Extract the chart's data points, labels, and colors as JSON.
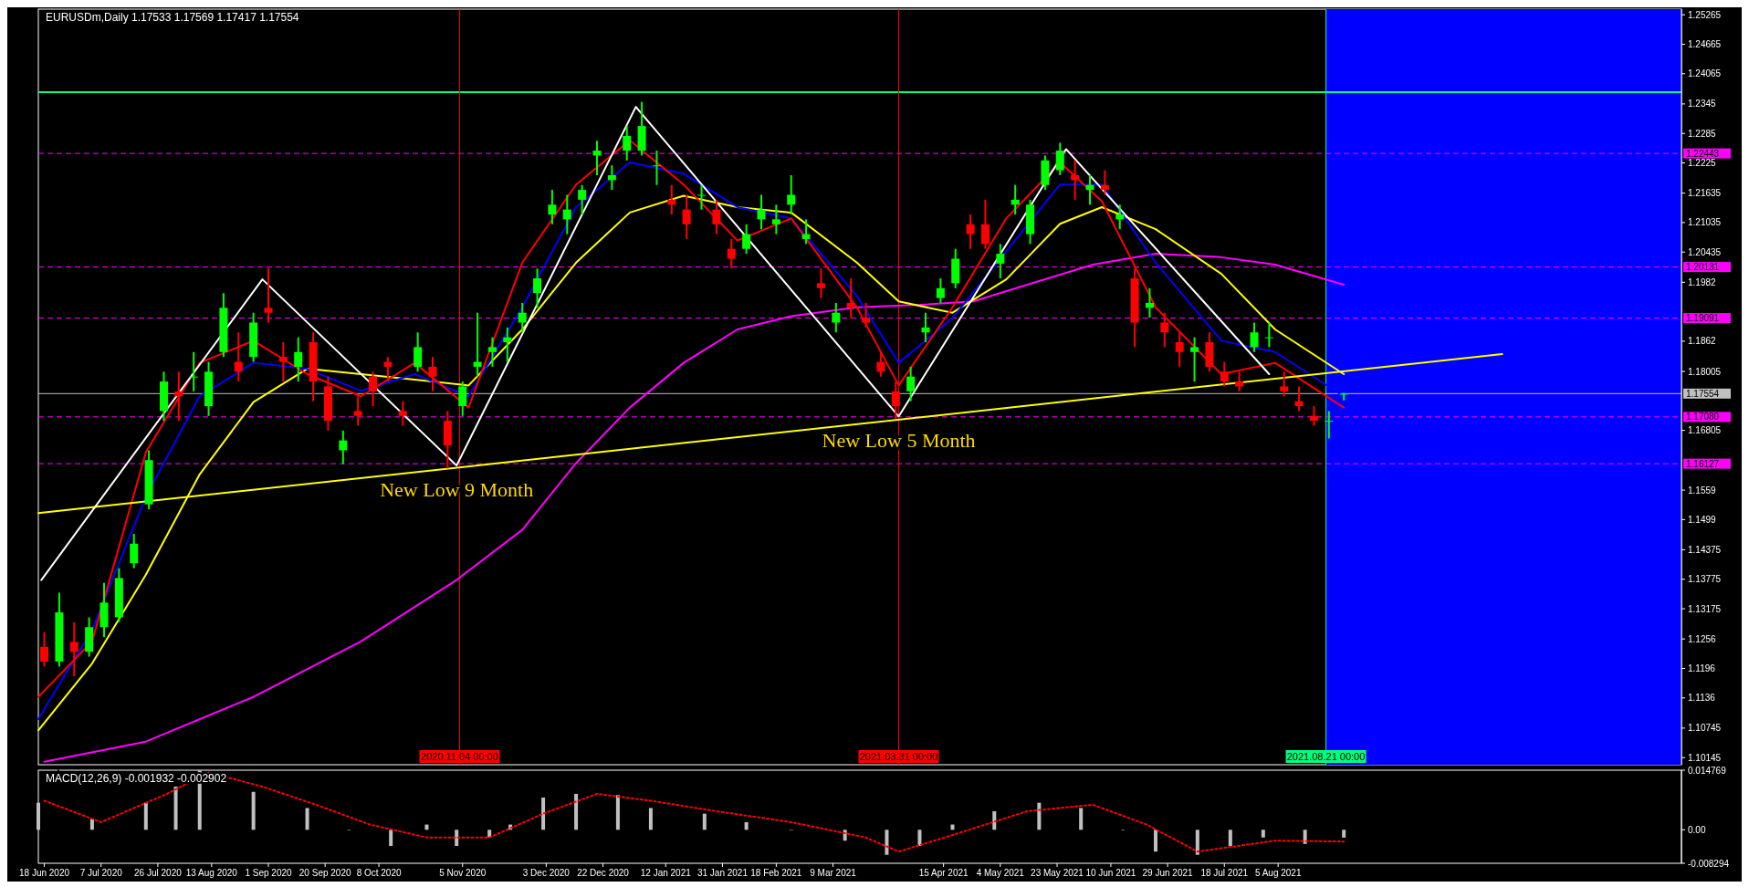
{
  "chart_data": [
    {
      "type": "candlestick",
      "title": "EURUSDm,Daily  1.17533 1.17569 1.17417 1.17554",
      "x": [
        "2020-06-18",
        "2020-06-23",
        "2020-06-28",
        "2020-07-03",
        "2020-07-08",
        "2020-07-13",
        "2020-07-18",
        "2020-07-23",
        "2020-07-28",
        "2020-08-02",
        "2020-08-07",
        "2020-08-12",
        "2020-08-17",
        "2020-08-22",
        "2020-08-27",
        "2020-09-01",
        "2020-09-06",
        "2020-09-11",
        "2020-09-16",
        "2020-09-21",
        "2020-09-26",
        "2020-10-01",
        "2020-10-06",
        "2020-10-11",
        "2020-10-16",
        "2020-10-21",
        "2020-10-26",
        "2020-10-31",
        "2020-11-05",
        "2020-11-10",
        "2020-11-15",
        "2020-11-20",
        "2020-11-25",
        "2020-11-30",
        "2020-12-05",
        "2020-12-10",
        "2020-12-15",
        "2020-12-20",
        "2020-12-25",
        "2020-12-30",
        "2021-01-04",
        "2021-01-09",
        "2021-01-14",
        "2021-01-19",
        "2021-01-24",
        "2021-01-29",
        "2021-02-03",
        "2021-02-08",
        "2021-02-13",
        "2021-02-18",
        "2021-02-23",
        "2021-02-28",
        "2021-03-05",
        "2021-03-10",
        "2021-03-15",
        "2021-03-20",
        "2021-03-25",
        "2021-03-30",
        "2021-04-04",
        "2021-04-09",
        "2021-04-14",
        "2021-04-19",
        "2021-04-24",
        "2021-04-29",
        "2021-05-04",
        "2021-05-09",
        "2021-05-14",
        "2021-05-19",
        "2021-05-24",
        "2021-05-29",
        "2021-06-03",
        "2021-06-08",
        "2021-06-13",
        "2021-06-18",
        "2021-06-23",
        "2021-06-28",
        "2021-07-03",
        "2021-07-08",
        "2021-07-13",
        "2021-07-18",
        "2021-07-23",
        "2021-07-28",
        "2021-08-02",
        "2021-08-07",
        "2021-08-12",
        "2021-08-17",
        "2021-08-22",
        "2021-08-27"
      ],
      "ohlc": [
        [
          1.124,
          1.127,
          1.12,
          1.121
        ],
        [
          1.121,
          1.135,
          1.12,
          1.131
        ],
        [
          1.125,
          1.129,
          1.118,
          1.123
        ],
        [
          1.123,
          1.13,
          1.122,
          1.128
        ],
        [
          1.128,
          1.137,
          1.126,
          1.133
        ],
        [
          1.13,
          1.14,
          1.129,
          1.138
        ],
        [
          1.141,
          1.147,
          1.14,
          1.145
        ],
        [
          1.153,
          1.164,
          1.152,
          1.162
        ],
        [
          1.172,
          1.18,
          1.17,
          1.178
        ],
        [
          1.176,
          1.18,
          1.17,
          1.175
        ],
        [
          1.179,
          1.184,
          1.176,
          1.179
        ],
        [
          1.173,
          1.182,
          1.171,
          1.18
        ],
        [
          1.184,
          1.196,
          1.183,
          1.193
        ],
        [
          1.182,
          1.188,
          1.178,
          1.18
        ],
        [
          1.183,
          1.192,
          1.182,
          1.19
        ],
        [
          1.193,
          1.2011,
          1.19,
          1.192
        ],
        [
          1.183,
          1.186,
          1.178,
          1.182
        ],
        [
          1.181,
          1.187,
          1.178,
          1.184
        ],
        [
          1.186,
          1.188,
          1.174,
          1.178
        ],
        [
          1.177,
          1.179,
          1.168,
          1.17
        ],
        [
          1.164,
          1.168,
          1.1612,
          1.166
        ],
        [
          1.172,
          1.175,
          1.169,
          1.171
        ],
        [
          1.179,
          1.18,
          1.173,
          1.176
        ],
        [
          1.182,
          1.183,
          1.178,
          1.181
        ],
        [
          1.172,
          1.174,
          1.169,
          1.171
        ],
        [
          1.181,
          1.188,
          1.18,
          1.185
        ],
        [
          1.181,
          1.183,
          1.176,
          1.179
        ],
        [
          1.17,
          1.172,
          1.1603,
          1.165
        ],
        [
          1.173,
          1.178,
          1.171,
          1.177
        ],
        [
          1.181,
          1.192,
          1.179,
          1.182
        ],
        [
          1.184,
          1.187,
          1.181,
          1.185
        ],
        [
          1.186,
          1.189,
          1.182,
          1.187
        ],
        [
          1.19,
          1.194,
          1.188,
          1.192
        ],
        [
          1.196,
          1.201,
          1.193,
          1.199
        ],
        [
          1.212,
          1.217,
          1.21,
          1.214
        ],
        [
          1.211,
          1.216,
          1.208,
          1.213
        ],
        [
          1.215,
          1.218,
          1.212,
          1.217
        ],
        [
          1.224,
          1.227,
          1.22,
          1.225
        ],
        [
          1.219,
          1.222,
          1.217,
          1.22
        ],
        [
          1.225,
          1.23,
          1.223,
          1.228
        ],
        [
          1.225,
          1.2349,
          1.224,
          1.23
        ],
        [
          1.222,
          1.225,
          1.218,
          1.222
        ],
        [
          1.215,
          1.218,
          1.212,
          1.214
        ],
        [
          1.213,
          1.216,
          1.207,
          1.21
        ],
        [
          1.216,
          1.218,
          1.213,
          1.216
        ],
        [
          1.213,
          1.215,
          1.208,
          1.21
        ],
        [
          1.205,
          1.207,
          1.201,
          1.203
        ],
        [
          1.205,
          1.21,
          1.204,
          1.208
        ],
        [
          1.211,
          1.216,
          1.209,
          1.213
        ],
        [
          1.21,
          1.214,
          1.208,
          1.211
        ],
        [
          1.214,
          1.22,
          1.212,
          1.216
        ],
        [
          1.207,
          1.211,
          1.206,
          1.208
        ],
        [
          1.198,
          1.201,
          1.195,
          1.197
        ],
        [
          1.19,
          1.194,
          1.188,
          1.192
        ],
        [
          1.194,
          1.199,
          1.191,
          1.193
        ],
        [
          1.191,
          1.194,
          1.189,
          1.19
        ],
        [
          1.182,
          1.184,
          1.179,
          1.18
        ],
        [
          1.176,
          1.178,
          1.1704,
          1.173
        ],
        [
          1.176,
          1.181,
          1.174,
          1.179
        ],
        [
          1.188,
          1.192,
          1.186,
          1.189
        ],
        [
          1.195,
          1.199,
          1.194,
          1.197
        ],
        [
          1.198,
          1.205,
          1.197,
          1.203
        ],
        [
          1.21,
          1.212,
          1.205,
          1.208
        ],
        [
          1.21,
          1.215,
          1.205,
          1.206
        ],
        [
          1.202,
          1.206,
          1.199,
          1.204
        ],
        [
          1.214,
          1.218,
          1.212,
          1.215
        ],
        [
          1.208,
          1.215,
          1.206,
          1.214
        ],
        [
          1.218,
          1.224,
          1.217,
          1.223
        ],
        [
          1.221,
          1.2266,
          1.22,
          1.225
        ],
        [
          1.22,
          1.223,
          1.215,
          1.219
        ],
        [
          1.217,
          1.22,
          1.214,
          1.218
        ],
        [
          1.218,
          1.221,
          1.216,
          1.217
        ],
        [
          1.211,
          1.214,
          1.209,
          1.212
        ],
        [
          1.199,
          1.201,
          1.185,
          1.19
        ],
        [
          1.193,
          1.197,
          1.191,
          1.194
        ],
        [
          1.19,
          1.192,
          1.185,
          1.188
        ],
        [
          1.186,
          1.188,
          1.181,
          1.184
        ],
        [
          1.184,
          1.187,
          1.178,
          1.185
        ],
        [
          1.186,
          1.188,
          1.18,
          1.181
        ],
        [
          1.18,
          1.182,
          1.177,
          1.178
        ],
        [
          1.178,
          1.18,
          1.176,
          1.177
        ],
        [
          1.185,
          1.19,
          1.184,
          1.188
        ],
        [
          1.187,
          1.19,
          1.185,
          1.187
        ],
        [
          1.177,
          1.18,
          1.175,
          1.176
        ],
        [
          1.174,
          1.177,
          1.172,
          1.173
        ],
        [
          1.171,
          1.173,
          1.169,
          1.17
        ],
        [
          1.17,
          1.172,
          1.1664,
          1.17
        ],
        [
          1.17533,
          1.17569,
          1.17417,
          1.17554
        ]
      ],
      "series": [
        {
          "type": "line",
          "color": "#ff00ff",
          "x": [
            "2020-06-18",
            "2020-07-22",
            "2020-08-27",
            "2020-10-02",
            "2020-11-03",
            "2020-11-25",
            "2020-12-13",
            "2020-12-31",
            "2021-01-18",
            "2021-02-05",
            "2021-02-23",
            "2021-03-17",
            "2021-04-07",
            "2021-04-25",
            "2021-05-13",
            "2021-06-04",
            "2021-06-25",
            "2021-07-17",
            "2021-08-04",
            "2021-08-27"
          ],
          "values": [
            1.1006,
            1.1047,
            1.1138,
            1.1251,
            1.1376,
            1.1478,
            1.1614,
            1.1727,
            1.1818,
            1.1886,
            1.1913,
            1.1931,
            1.1936,
            1.1943,
            1.1977,
            1.2018,
            1.204,
            1.2033,
            1.2018,
            1.1977
          ]
        },
        {
          "type": "line",
          "color": "#ffff00",
          "x": [
            "2020-06-16",
            "2020-07-04",
            "2020-07-22",
            "2020-08-09",
            "2020-08-27",
            "2020-09-14",
            "2020-10-02",
            "2020-10-20",
            "2020-11-07",
            "2020-11-25",
            "2020-12-13",
            "2020-12-31",
            "2021-01-18",
            "2021-02-05",
            "2021-02-23",
            "2021-03-17",
            "2021-03-31",
            "2021-04-18",
            "2021-05-06",
            "2021-05-24",
            "2021-06-07",
            "2021-06-25",
            "2021-07-17",
            "2021-08-04",
            "2021-08-27"
          ],
          "values": [
            1.107,
            1.1206,
            1.1387,
            1.1591,
            1.1738,
            1.1806,
            1.1795,
            1.1784,
            1.1772,
            1.1886,
            1.2022,
            1.2124,
            1.2158,
            1.2135,
            1.2124,
            1.2022,
            1.1943,
            1.192,
            1.1988,
            1.2101,
            1.2135,
            1.209,
            1.1999,
            1.1886,
            1.1795
          ]
        },
        {
          "type": "line",
          "color": "#0000ff",
          "x": [
            "2020-06-16",
            "2020-07-04",
            "2020-07-22",
            "2020-08-09",
            "2020-08-27",
            "2020-09-14",
            "2020-10-02",
            "2020-10-20",
            "2020-11-07",
            "2020-11-25",
            "2020-12-13",
            "2020-12-31",
            "2021-01-18",
            "2021-02-05",
            "2021-02-23",
            "2021-03-17",
            "2021-03-31",
            "2021-04-18",
            "2021-05-06",
            "2021-05-24",
            "2021-06-07",
            "2021-06-25",
            "2021-07-17",
            "2021-08-04",
            "2021-08-27"
          ],
          "values": [
            1.1093,
            1.1274,
            1.1546,
            1.175,
            1.1818,
            1.1806,
            1.1761,
            1.1795,
            1.175,
            1.1931,
            1.2135,
            1.2226,
            1.2203,
            1.2135,
            1.2112,
            1.1954,
            1.1818,
            1.1909,
            1.2045,
            1.2181,
            1.2181,
            1.2022,
            1.1863,
            1.184,
            1.175
          ]
        },
        {
          "type": "line",
          "color": "#ff0000",
          "x": [
            "2020-06-16",
            "2020-07-04",
            "2020-07-22",
            "2020-08-09",
            "2020-08-27",
            "2020-09-14",
            "2020-10-02",
            "2020-10-20",
            "2020-11-07",
            "2020-11-25",
            "2020-12-13",
            "2020-12-31",
            "2021-01-18",
            "2021-02-05",
            "2021-02-23",
            "2021-03-17",
            "2021-03-31",
            "2021-04-18",
            "2021-05-06",
            "2021-05-24",
            "2021-06-07",
            "2021-06-25",
            "2021-07-17",
            "2021-08-04",
            "2021-08-27"
          ],
          "values": [
            1.1138,
            1.1251,
            1.1636,
            1.1818,
            1.1863,
            1.1795,
            1.175,
            1.1818,
            1.1727,
            1.2022,
            1.2181,
            1.2271,
            1.2181,
            1.2067,
            1.2112,
            1.1931,
            1.1772,
            1.1931,
            1.2112,
            1.2226,
            1.2147,
            1.1931,
            1.1795,
            1.1818,
            1.1727
          ]
        },
        {
          "type": "line",
          "color": "#ffff00",
          "x": [
            "2020-06-16",
            "2021-10-19"
          ],
          "values": [
            1.1512,
            1.1836
          ]
        },
        {
          "type": "line",
          "color": "#ffffff",
          "x": [
            "2020-06-17",
            "2020-08-30",
            "2020-11-03",
            "2021-01-02",
            "2021-03-31",
            "2021-05-26",
            "2021-08-02"
          ],
          "values": [
            1.1376,
            1.1988,
            1.1609,
            1.2339,
            1.1709,
            1.2253,
            1.1795
          ]
        }
      ],
      "xlim": [
        "2020-06-16",
        "2021-12-18"
      ],
      "ylim": [
        1.1,
        1.2538
      ],
      "yticks": [
        1.25265,
        1.24665,
        1.24065,
        1.2345,
        1.2285,
        1.2225,
        1.21635,
        1.21035,
        1.20435,
        1.1982,
        1.1862,
        1.18005,
        1.16805,
        1.1559,
        1.1499,
        1.14375,
        1.13775,
        1.13175,
        1.1256,
        1.1196,
        1.1136,
        1.10745,
        1.10145
      ],
      "tick_labels": "y",
      "bands": [
        {
          "axis": "x",
          "from": "2021-08-21",
          "to": "2021-12-18",
          "color": "#0000ff"
        }
      ],
      "ref_lines": [
        {
          "axis": "y",
          "value": 1.2369,
          "label": null,
          "color": "#00ff7f",
          "line_style": "solid"
        },
        {
          "axis": "y",
          "value": 1.22443,
          "label": "1.22443",
          "color": "#ff00ff",
          "line_style": "dashed"
        },
        {
          "axis": "y",
          "value": 1.20131,
          "label": "1.20131",
          "color": "#ff00ff",
          "line_style": "dashed"
        },
        {
          "axis": "y",
          "value": 1.19091,
          "label": "1.19091",
          "color": "#ff00ff",
          "line_style": "dashed"
        },
        {
          "axis": "y",
          "value": 1.17554,
          "label": "1.17554",
          "color": "#c0c0c0",
          "line_style": "solid"
        },
        {
          "axis": "y",
          "value": 1.1708,
          "label": "1.17080",
          "color": "#ff00ff",
          "line_style": "dashed"
        },
        {
          "axis": "y",
          "value": 1.16127,
          "label": "1.16127",
          "color": "#ff00ff",
          "line_style": "dashed"
        },
        {
          "axis": "x",
          "value": "2020-11-04",
          "label": "2020.11.04 00:00",
          "color": "#ff0000",
          "line_style": "solid"
        },
        {
          "axis": "x",
          "value": "2021-03-31",
          "label": "2021.03.31 00:00",
          "color": "#ff0000",
          "line_style": "solid"
        },
        {
          "axis": "x",
          "value": "2021-08-21",
          "label": "2021.08.21 00:00",
          "color": "#00ff7f",
          "line_style": "solid"
        }
      ],
      "annotations": [
        {
          "text": "New Low 9 Month",
          "x": "2020-11-03",
          "y": 1.1609
        },
        {
          "text": "New Low 5 Month",
          "x": "2021-03-31",
          "y": 1.1709
        }
      ]
    },
    {
      "type": "bar",
      "title": "MACD(12,26,9) -0.001932 -0.002902",
      "series": [
        {
          "type": "bar",
          "color": "#c0c0c0",
          "x": [
            "2020-06-16",
            "2020-07-04",
            "2020-07-22",
            "2020-08-01",
            "2020-08-09",
            "2020-08-27",
            "2020-09-14",
            "2020-09-28",
            "2020-10-12",
            "2020-10-24",
            "2020-11-03",
            "2020-11-14",
            "2020-11-21",
            "2020-12-02",
            "2020-12-13",
            "2020-12-27",
            "2021-01-07",
            "2021-01-25",
            "2021-02-08",
            "2021-02-23",
            "2021-03-13",
            "2021-03-27",
            "2021-04-07",
            "2021-04-18",
            "2021-05-02",
            "2021-05-17",
            "2021-05-31",
            "2021-06-14",
            "2021-06-25",
            "2021-07-09",
            "2021-07-20",
            "2021-07-31",
            "2021-08-14",
            "2021-08-27"
          ],
          "values": [
            0.0067,
            0.0027,
            0.0067,
            0.0107,
            0.0147,
            0.0094,
            0.0054,
            0,
            -0.004,
            0.0013,
            -0.004,
            -0.0019,
            0.0013,
            0.008,
            0.0089,
            0.0086,
            0.0054,
            0.004,
            0.0019,
            0,
            -0.0027,
            -0.0062,
            -0.004,
            0.0013,
            0.0046,
            0.0067,
            0.0054,
            0,
            -0.0054,
            -0.0062,
            -0.004,
            -0.0019,
            -0.0035,
            -0.001932
          ]
        },
        {
          "type": "line",
          "color": "#ff0000",
          "line_style": "dotted",
          "x": [
            "2020-06-18",
            "2020-07-07",
            "2020-07-29",
            "2020-08-12",
            "2020-08-30",
            "2020-09-17",
            "2020-10-05",
            "2020-10-24",
            "2020-11-14",
            "2020-12-02",
            "2020-12-20",
            "2021-01-07",
            "2021-01-29",
            "2021-02-23",
            "2021-03-20",
            "2021-03-31",
            "2021-04-18",
            "2021-05-13",
            "2021-06-04",
            "2021-06-22",
            "2021-07-09",
            "2021-08-04",
            "2021-08-27"
          ],
          "values": [
            0.0072,
            0.0019,
            0.0089,
            0.0142,
            0.0107,
            0.0062,
            0.0013,
            -0.0019,
            -0.0019,
            0.004,
            0.0089,
            0.0072,
            0.0046,
            0.0019,
            -0.0019,
            -0.0054,
            -0.0013,
            0.0046,
            0.0062,
            0.0013,
            -0.0054,
            -0.0027,
            -0.002902
          ]
        }
      ],
      "xlim": [
        "2020-06-16",
        "2021-12-18"
      ],
      "ylim": [
        -0.008294,
        0.014769
      ],
      "yticks": [
        0.014769,
        {
          "value": 0,
          "label": "0.00"
        },
        -0.008294
      ],
      "xticks": [
        {
          "value": "2020-06-18",
          "label": "18 Jun 2020"
        },
        {
          "value": "2020-07-07",
          "label": "7 Jul 2020"
        },
        {
          "value": "2020-07-26",
          "label": "26 Jul 2020"
        },
        {
          "value": "2020-08-13",
          "label": "13 Aug 2020"
        },
        {
          "value": "2020-09-01",
          "label": "1 Sep 2020"
        },
        {
          "value": "2020-09-20",
          "label": "20 Sep 2020"
        },
        {
          "value": "2020-10-08",
          "label": "8 Oct 2020"
        },
        {
          "value": "2020-11-05",
          "label": "5 Nov 2020"
        },
        {
          "value": "2020-12-03",
          "label": "3 Dec 2020"
        },
        {
          "value": "2020-12-22",
          "label": "22 Dec 2020"
        },
        {
          "value": "2021-01-12",
          "label": "12 Jan 2021"
        },
        {
          "value": "2021-01-31",
          "label": "31 Jan 2021"
        },
        {
          "value": "2021-02-18",
          "label": "18 Feb 2021"
        },
        {
          "value": "2021-03-09",
          "label": "9 Mar 2021"
        },
        {
          "value": "2021-04-15",
          "label": "15 Apr 2021"
        },
        {
          "value": "2021-05-04",
          "label": "4 May 2021"
        },
        {
          "value": "2021-05-23",
          "label": "23 May 2021"
        },
        {
          "value": "2021-06-10",
          "label": "10 Jun 2021"
        },
        {
          "value": "2021-06-29",
          "label": "29 Jun 2021"
        },
        {
          "value": "2021-07-18",
          "label": "18 Jul 2021"
        },
        {
          "value": "2021-08-05",
          "label": "5 Aug 2021"
        }
      ]
    }
  ]
}
